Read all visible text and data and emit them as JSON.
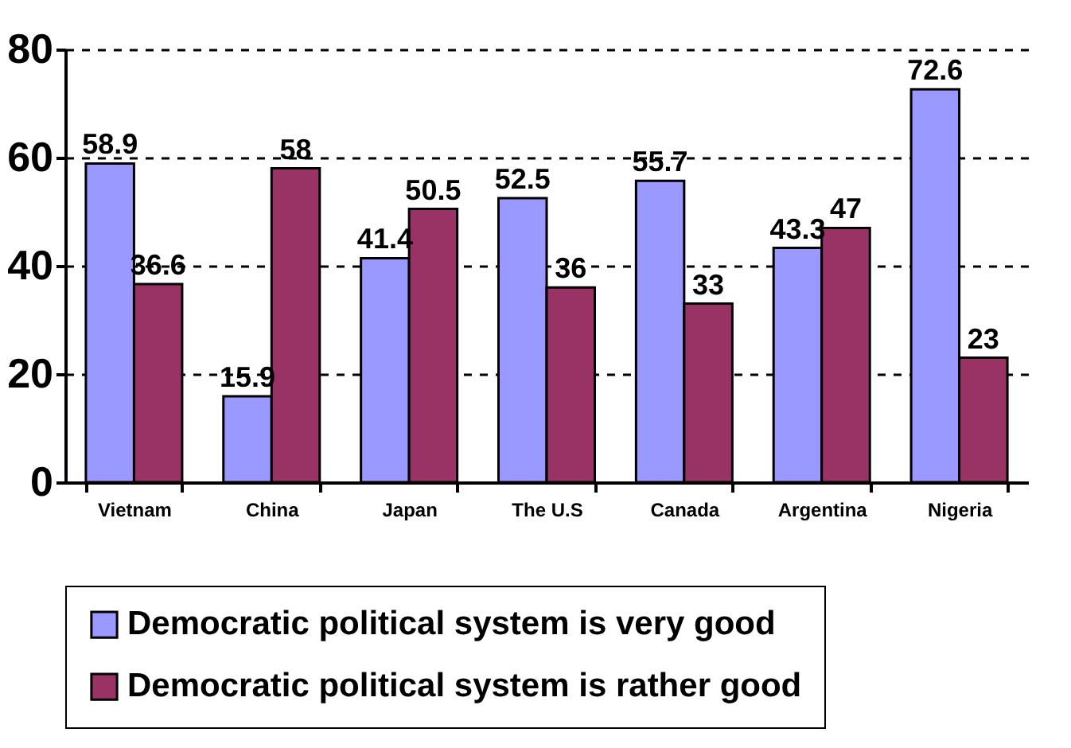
{
  "chart_data": {
    "type": "bar",
    "categories": [
      "Vietnam",
      "China",
      "Japan",
      "The U.S",
      "Canada",
      "Argentina",
      "Nigeria"
    ],
    "series": [
      {
        "name": "Democratic political system is very good",
        "color": "#9999ff",
        "values": [
          58.9,
          15.9,
          41.4,
          52.5,
          55.7,
          43.3,
          72.6
        ]
      },
      {
        "name": "Democratic political system is rather good",
        "color": "#993366",
        "values": [
          36.6,
          58,
          50.5,
          36,
          33,
          47,
          23
        ]
      }
    ],
    "ylim": [
      0,
      80
    ],
    "yticks": [
      0,
      20,
      40,
      60,
      80
    ],
    "grid": "y",
    "legend": "bottom",
    "data_labels": true
  }
}
